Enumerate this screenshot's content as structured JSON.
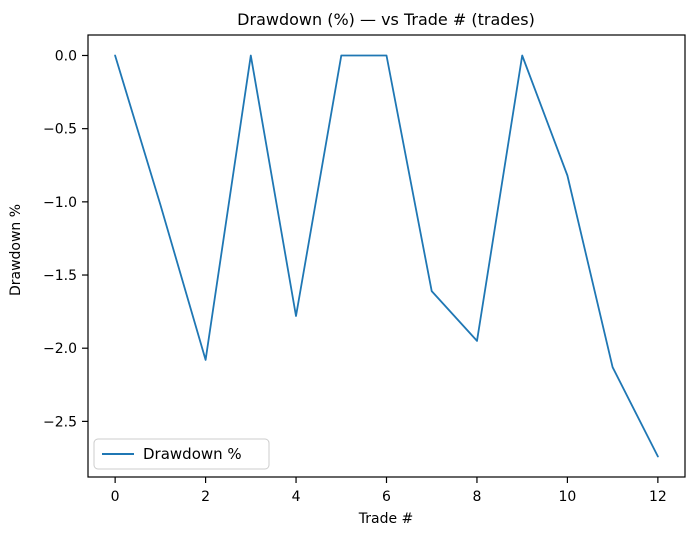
{
  "chart_data": {
    "type": "line",
    "title": "Drawdown (%) — vs Trade # (trades)",
    "xlabel": "Trade #",
    "ylabel": "Drawdown %",
    "x": [
      0,
      1,
      2,
      3,
      4,
      5,
      6,
      7,
      8,
      9,
      10,
      11,
      12
    ],
    "series": [
      {
        "name": "Drawdown %",
        "color": "#1f77b4",
        "values": [
          0.0,
          -1.02,
          -2.08,
          0.0,
          -1.78,
          0.0,
          0.0,
          -1.61,
          -1.95,
          0.0,
          -0.82,
          -2.13,
          -2.74
        ]
      }
    ],
    "x_ticks": {
      "values": [
        0,
        2,
        4,
        6,
        8,
        10,
        12
      ],
      "labels": [
        "0",
        "2",
        "4",
        "6",
        "8",
        "10",
        "12"
      ]
    },
    "y_ticks": {
      "values": [
        0.0,
        -0.5,
        -1.0,
        -1.5,
        -2.0,
        -2.5
      ],
      "labels": [
        "0.0",
        "−0.5",
        "−1.0",
        "−1.5",
        "−2.0",
        "−2.5"
      ]
    },
    "xlim": [
      -0.6,
      12.6
    ],
    "ylim": [
      -2.88,
      0.14
    ],
    "grid": false,
    "legend": {
      "position": "lower left",
      "entries": [
        "Drawdown %"
      ]
    },
    "colors": {
      "line": "#1f77b4",
      "frame": "#000000",
      "legend_border": "#cccccc",
      "background": "#ffffff"
    }
  }
}
